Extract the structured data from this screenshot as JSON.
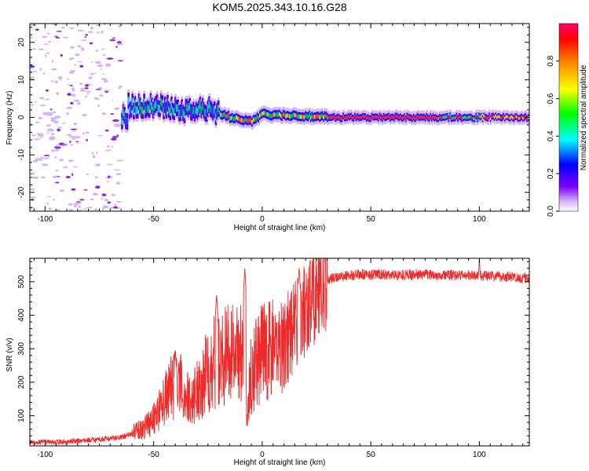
{
  "title": "KOM5.2025.343.10.16.G28",
  "chart_data": [
    {
      "type": "heatmap",
      "xlabel": "Height of straight line (km)",
      "ylabel": "Frequency (Hz)",
      "xlim": [
        -107,
        123
      ],
      "ylim": [
        -25,
        25
      ],
      "x_ticks": [
        -100,
        -50,
        0,
        50,
        100
      ],
      "y_ticks": [
        -20,
        -10,
        0,
        10,
        20
      ],
      "colorbar": {
        "label": "Normalized spectral amplitude",
        "range": [
          0.0,
          1.0
        ],
        "ticks": [
          0.0,
          0.2,
          0.4,
          0.6,
          0.8
        ]
      },
      "description_features": {
        "noise_region_x": [
          -107,
          -65
        ],
        "signal_start_x": -65,
        "signal_center_freq": [
          {
            "x": -62,
            "f": 3
          },
          {
            "x": -45,
            "f": 3
          },
          {
            "x": -35,
            "f": 2
          },
          {
            "x": -25,
            "f": 2
          },
          {
            "x": -15,
            "f": 0
          },
          {
            "x": -5,
            "f": -1
          },
          {
            "x": 0,
            "f": 0.8
          },
          {
            "x": 30,
            "f": 0
          },
          {
            "x": 123,
            "f": 0
          }
        ],
        "saturated_band_x": [
          30,
          123
        ]
      }
    },
    {
      "type": "line",
      "xlabel": "Height of straight line (km)",
      "ylabel": "SNR (v/v)",
      "xlim": [
        -107,
        123
      ],
      "ylim": [
        10,
        570
      ],
      "x_ticks": [
        -100,
        -50,
        0,
        50,
        100
      ],
      "y_ticks": [
        100,
        200,
        300,
        400,
        500
      ],
      "series": [
        {
          "name": "SNR",
          "color": "#ee2a2a",
          "x": [
            -107,
            -90,
            -75,
            -65,
            -55,
            -48,
            -44,
            -40,
            -37,
            -33,
            -28,
            -25,
            -22,
            -20,
            -17,
            -14,
            -10,
            -7,
            -5,
            -3,
            0,
            5,
            10,
            15,
            20,
            25,
            30,
            35,
            40,
            50,
            60,
            70,
            80,
            90,
            100,
            110,
            123
          ],
          "values": [
            20,
            22,
            30,
            35,
            60,
            110,
            160,
            200,
            180,
            140,
            200,
            240,
            260,
            270,
            280,
            290,
            300,
            140,
            230,
            260,
            290,
            300,
            320,
            370,
            420,
            470,
            505,
            515,
            520,
            522,
            520,
            522,
            520,
            520,
            518,
            516,
            510
          ],
          "spikes": [
            {
              "x": -40,
              "y": 300
            },
            {
              "x": -21,
              "y": 465
            },
            {
              "x": -8,
              "y": 540
            },
            {
              "x": 17,
              "y": 545
            },
            {
              "x": 100,
              "y": 570
            }
          ]
        }
      ]
    }
  ]
}
